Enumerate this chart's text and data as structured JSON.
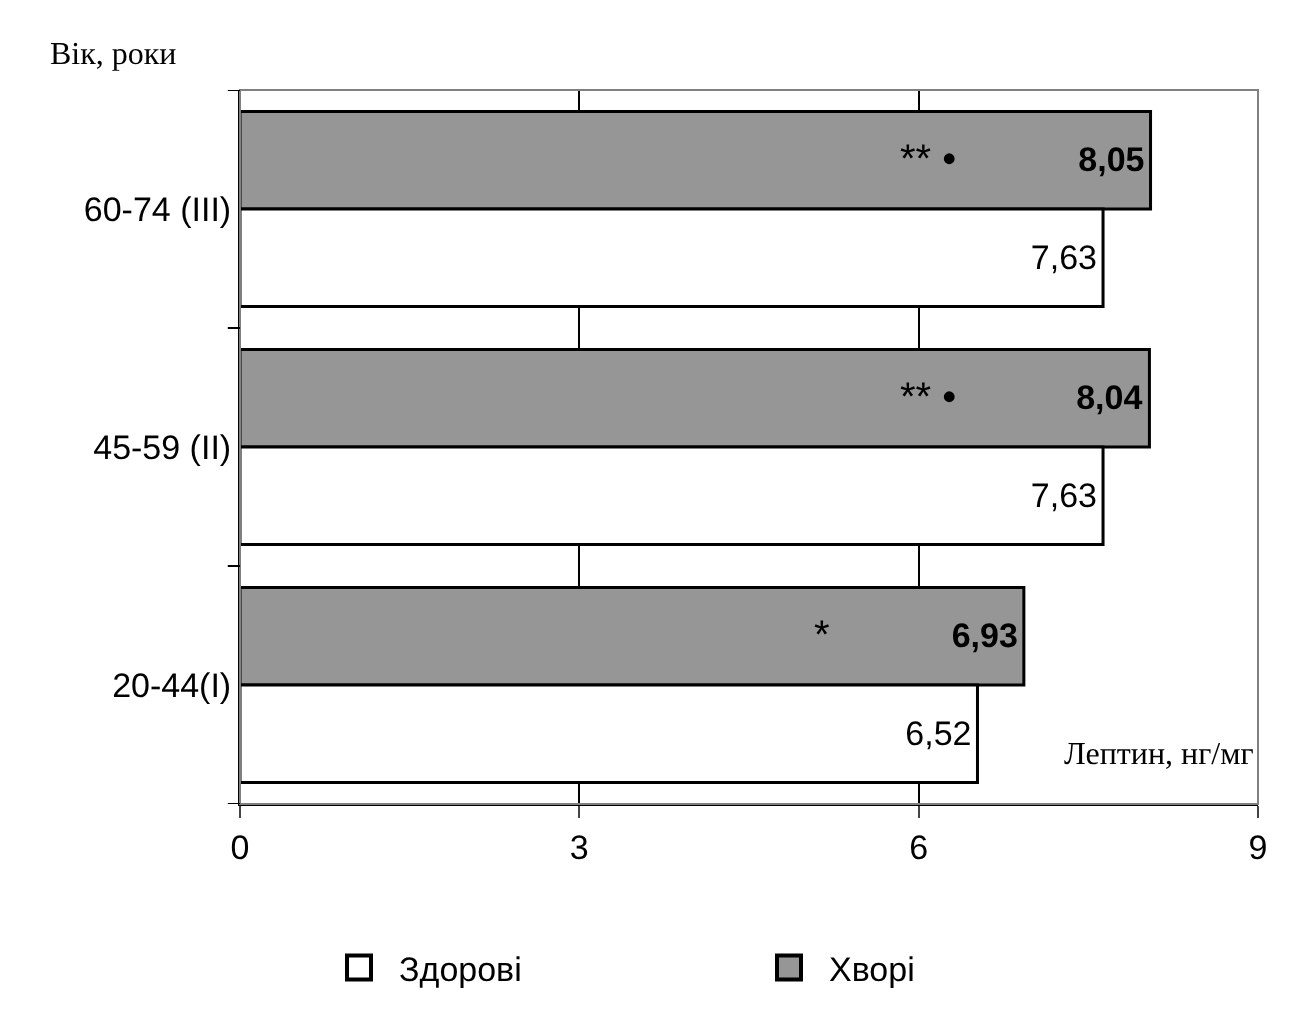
{
  "chart_data": {
    "type": "bar",
    "orientation": "horizontal",
    "categories": [
      "60-74 (III)",
      "45-59 (II)",
      "20-44(I)"
    ],
    "series": [
      {
        "name": "Здорові",
        "color": "#ffffff",
        "values": [
          7.63,
          7.63,
          6.52
        ],
        "value_labels": [
          "7,63",
          "7,63",
          "6,52"
        ]
      },
      {
        "name": "Хворі",
        "color": "#969696",
        "values": [
          8.05,
          8.04,
          6.93
        ],
        "value_labels": [
          "8,05",
          "8,04",
          "6,93"
        ]
      }
    ],
    "xlabel": "Лептин, нг/мг",
    "ylabel": "Вік, роки",
    "xlim": [
      0,
      9
    ],
    "xticks": [
      0,
      3,
      6,
      9
    ],
    "grid": "x",
    "legend": "bottom",
    "annotations": [
      "** •",
      "** •",
      "*"
    ]
  }
}
